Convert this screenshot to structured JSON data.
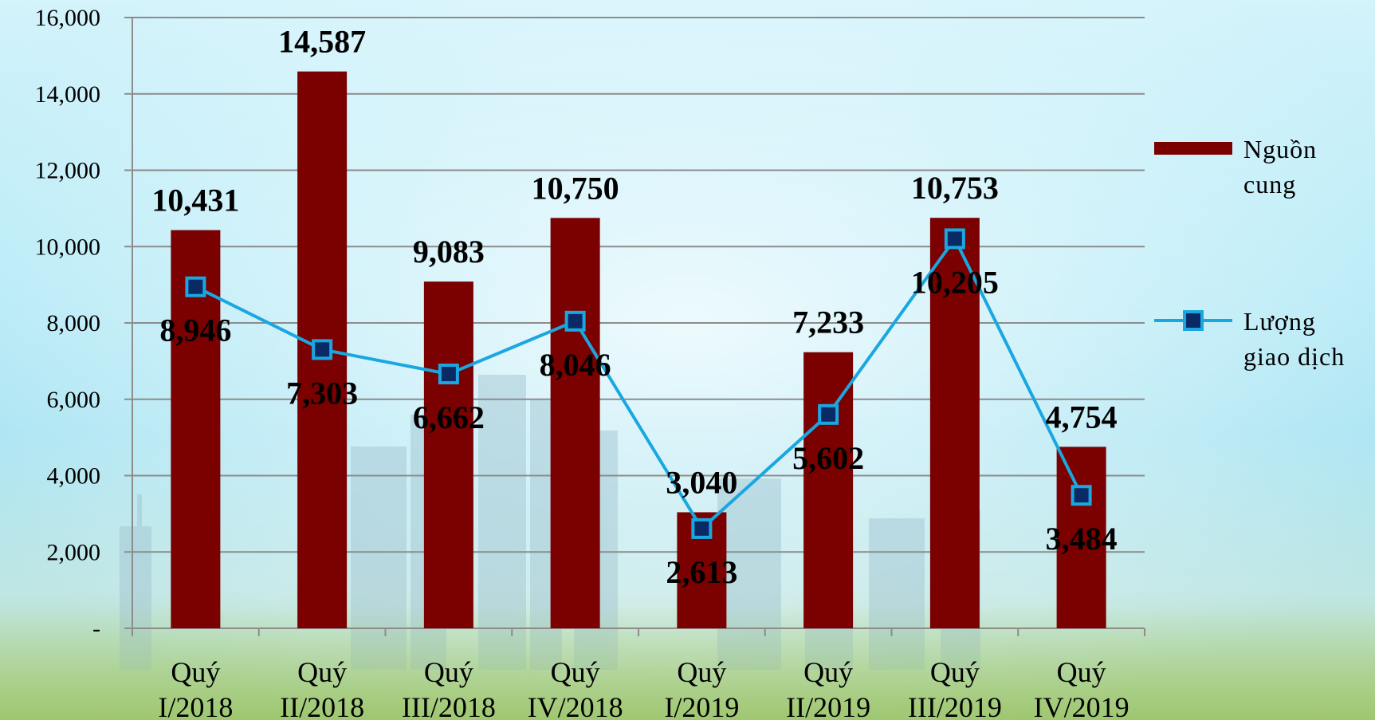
{
  "chart_data": {
    "type": "bar",
    "categories": [
      [
        "Quý",
        "I/2018"
      ],
      [
        "Quý",
        "II/2018"
      ],
      [
        "Quý",
        "III/2018"
      ],
      [
        "Quý",
        "IV/2018"
      ],
      [
        "Quý",
        "I/2019"
      ],
      [
        "Quý",
        "II/2019"
      ],
      [
        "Quý",
        "III/2019"
      ],
      [
        "Quý",
        "IV/2019"
      ]
    ],
    "series": [
      {
        "name": [
          "Nguồn",
          "cung"
        ],
        "type": "bar",
        "color": "#7b0000",
        "values": [
          10431,
          14587,
          9083,
          10750,
          3040,
          7233,
          10753,
          4754
        ],
        "labels": [
          "10,431",
          "14,587",
          "9,083",
          "10,750",
          "3,040",
          "7,233",
          "10,753",
          "4,754"
        ]
      },
      {
        "name": [
          "Lượng",
          "giao dịch"
        ],
        "type": "line",
        "color": "#1aa7e0",
        "marker_color": "#0a2a66",
        "values": [
          8946,
          7303,
          6662,
          8046,
          2613,
          5602,
          10205,
          3484
        ],
        "labels": [
          "8,946",
          "7,303",
          "6,662",
          "8,046",
          "2,613",
          "5,602",
          "10,205",
          "3,484"
        ]
      }
    ],
    "y_ticks": [
      {
        "value": 0,
        "label": "-"
      },
      {
        "value": 2000,
        "label": "2,000"
      },
      {
        "value": 4000,
        "label": "4,000"
      },
      {
        "value": 6000,
        "label": "6,000"
      },
      {
        "value": 8000,
        "label": "8,000"
      },
      {
        "value": 10000,
        "label": "10,000"
      },
      {
        "value": 12000,
        "label": "12,000"
      },
      {
        "value": 14000,
        "label": "14,000"
      },
      {
        "value": 16000,
        "label": "16,000"
      }
    ],
    "ylim": [
      0,
      16000
    ],
    "grid": true,
    "legend_position": "right",
    "title": "",
    "xlabel": "",
    "ylabel": ""
  }
}
